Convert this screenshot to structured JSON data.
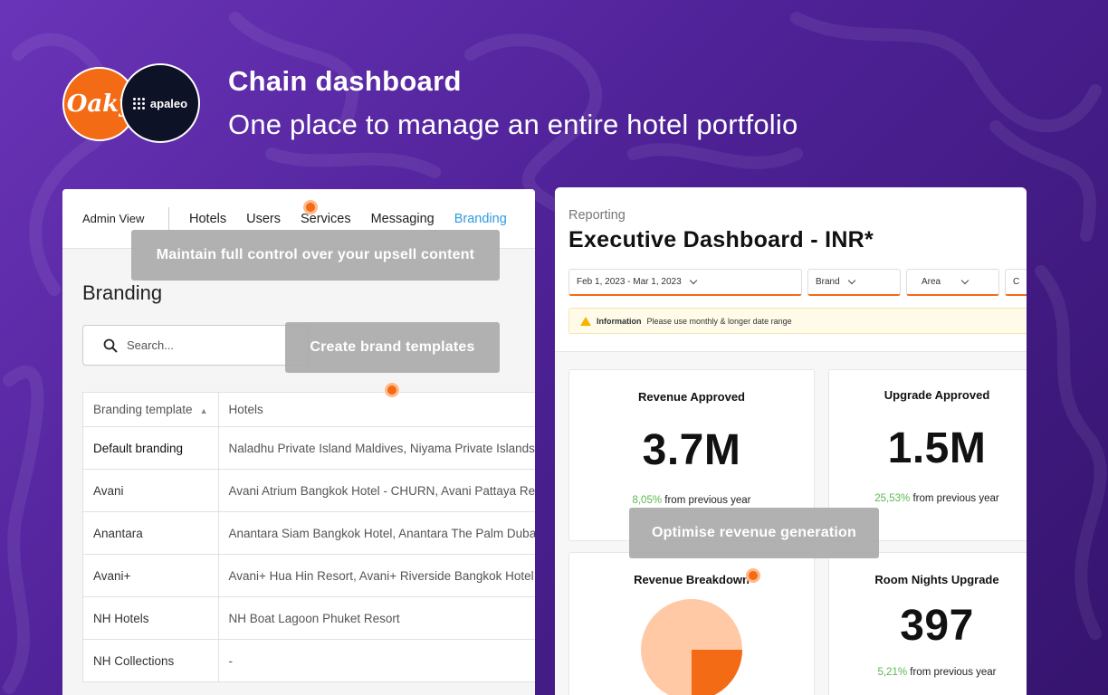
{
  "hero": {
    "title": "Chain dashboard",
    "subtitle": "One place to manage an entire hotel portfolio"
  },
  "logos": {
    "oaky": "Oaky",
    "apaleo": "apaleo"
  },
  "admin": {
    "nav": {
      "admin_view": "Admin View",
      "items": [
        "Hotels",
        "Users",
        "Services",
        "Messaging",
        "Branding"
      ],
      "active": "Branding"
    },
    "page_title": "Branding",
    "search_placeholder": "Search...",
    "table": {
      "headers": [
        "Branding template",
        "Hotels"
      ],
      "rows": [
        {
          "template": "Default branding",
          "hotels": "Naladhu Private Island Maldives, Niyama Private Islands Maldives"
        },
        {
          "template": "Avani",
          "hotels": "Avani Atrium Bangkok Hotel - CHURN, Avani Pattaya Resort"
        },
        {
          "template": "Anantara",
          "hotels": "Anantara Siam Bangkok Hotel, Anantara The Palm Dubai Resort"
        },
        {
          "template": "Avani+",
          "hotels": "Avani+ Hua Hin Resort, Avani+ Riverside Bangkok Hotel"
        },
        {
          "template": "NH Hotels",
          "hotels": "NH Boat Lagoon Phuket Resort"
        },
        {
          "template": "NH Collections",
          "hotels": "-"
        }
      ]
    }
  },
  "report": {
    "section": "Reporting",
    "title": "Executive Dashboard - INR*",
    "filters": {
      "date_range": "Feb 1, 2023 - Mar 1, 2023",
      "brand": "Brand",
      "area": "Area",
      "extra": "C"
    },
    "info": {
      "label": "Information",
      "text": "Please use monthly & longer date range"
    },
    "cards": {
      "revenue_approved": {
        "title": "Revenue Approved",
        "value": "3.7M",
        "delta": "8,05%",
        "delta_text": "from previous year"
      },
      "upgrade_approved": {
        "title": "Upgrade Approved",
        "value": "1.5M",
        "delta": "25,53%",
        "delta_text": "from previous year"
      },
      "revenue_breakdown": {
        "title": "Revenue Breakdown"
      },
      "room_nights_upgrade": {
        "title": "Room Nights Upgrade",
        "value": "397",
        "delta": "5,21%",
        "delta_text": "from previous year"
      }
    }
  },
  "tooltips": {
    "upsell": "Maintain full control over your upsell content",
    "brand_templates": "Create brand templates",
    "revenue": "Optimise revenue generation"
  },
  "colors": {
    "accent": "#f36b14",
    "link": "#2c9be0",
    "positive": "#5ab84e",
    "pie_light": "#ffc9a6"
  }
}
